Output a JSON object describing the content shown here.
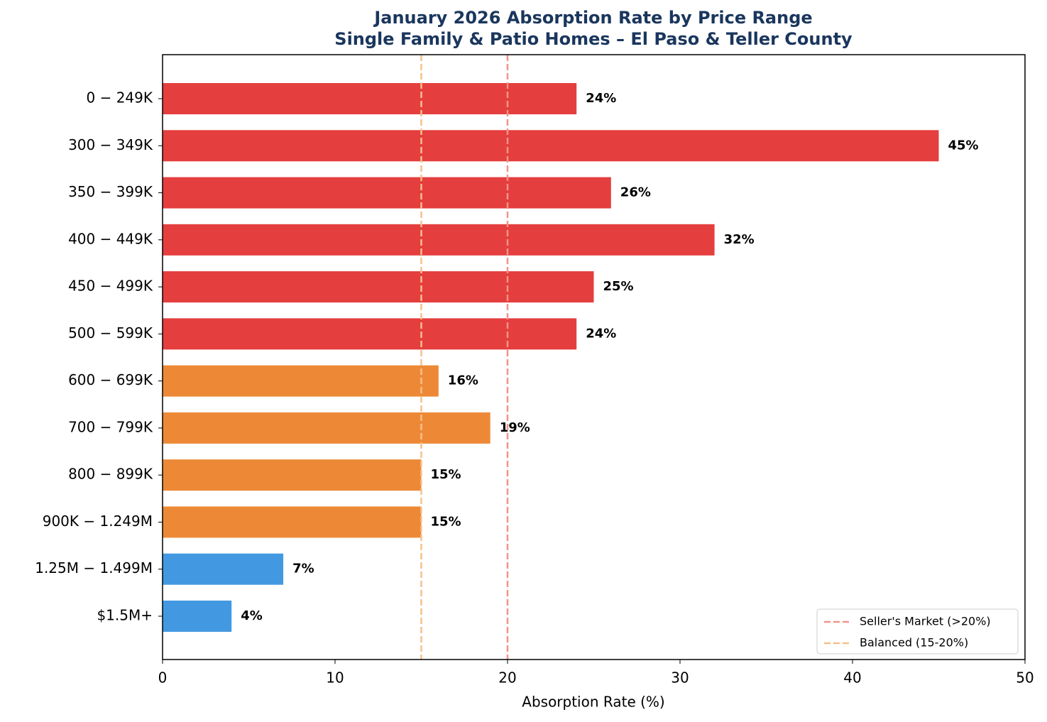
{
  "chart_data": {
    "type": "barh",
    "title": "January 2026 Absorption Rate by Price Range",
    "subtitle": "Single Family & Patio Homes – El Paso & Teller County",
    "xlabel": "Absorption Rate (%)",
    "categories": [
      "0 − 249K",
      "300 − 349K",
      "350 − 399K",
      "400 − 449K",
      "450 − 499K",
      "500 − 599K",
      "600 − 699K",
      "700 − 799K",
      "800 − 899K",
      "900K − 1.249M",
      "1.25M − 1.499M",
      "$1.5M+"
    ],
    "values": [
      24,
      45,
      26,
      32,
      25,
      24,
      16,
      19,
      15,
      15,
      7,
      4
    ],
    "value_labels": [
      "24%",
      "45%",
      "26%",
      "32%",
      "25%",
      "24%",
      "16%",
      "19%",
      "15%",
      "15%",
      "7%",
      "4%"
    ],
    "colors": [
      "#e53e3e",
      "#e53e3e",
      "#e53e3e",
      "#e53e3e",
      "#e53e3e",
      "#e53e3e",
      "#ed8936",
      "#ed8936",
      "#ed8936",
      "#ed8936",
      "#4299e1",
      "#4299e1"
    ],
    "xlim": [
      0,
      50
    ],
    "xticks": [
      0,
      10,
      20,
      30,
      40,
      50
    ],
    "reference_lines": [
      {
        "value": 20,
        "label": "Seller's Market (>20%)",
        "color": "#f1948a"
      },
      {
        "value": 15,
        "label": "Balanced (15-20%)",
        "color": "#f5c08a"
      }
    ],
    "legend": "lower right"
  }
}
